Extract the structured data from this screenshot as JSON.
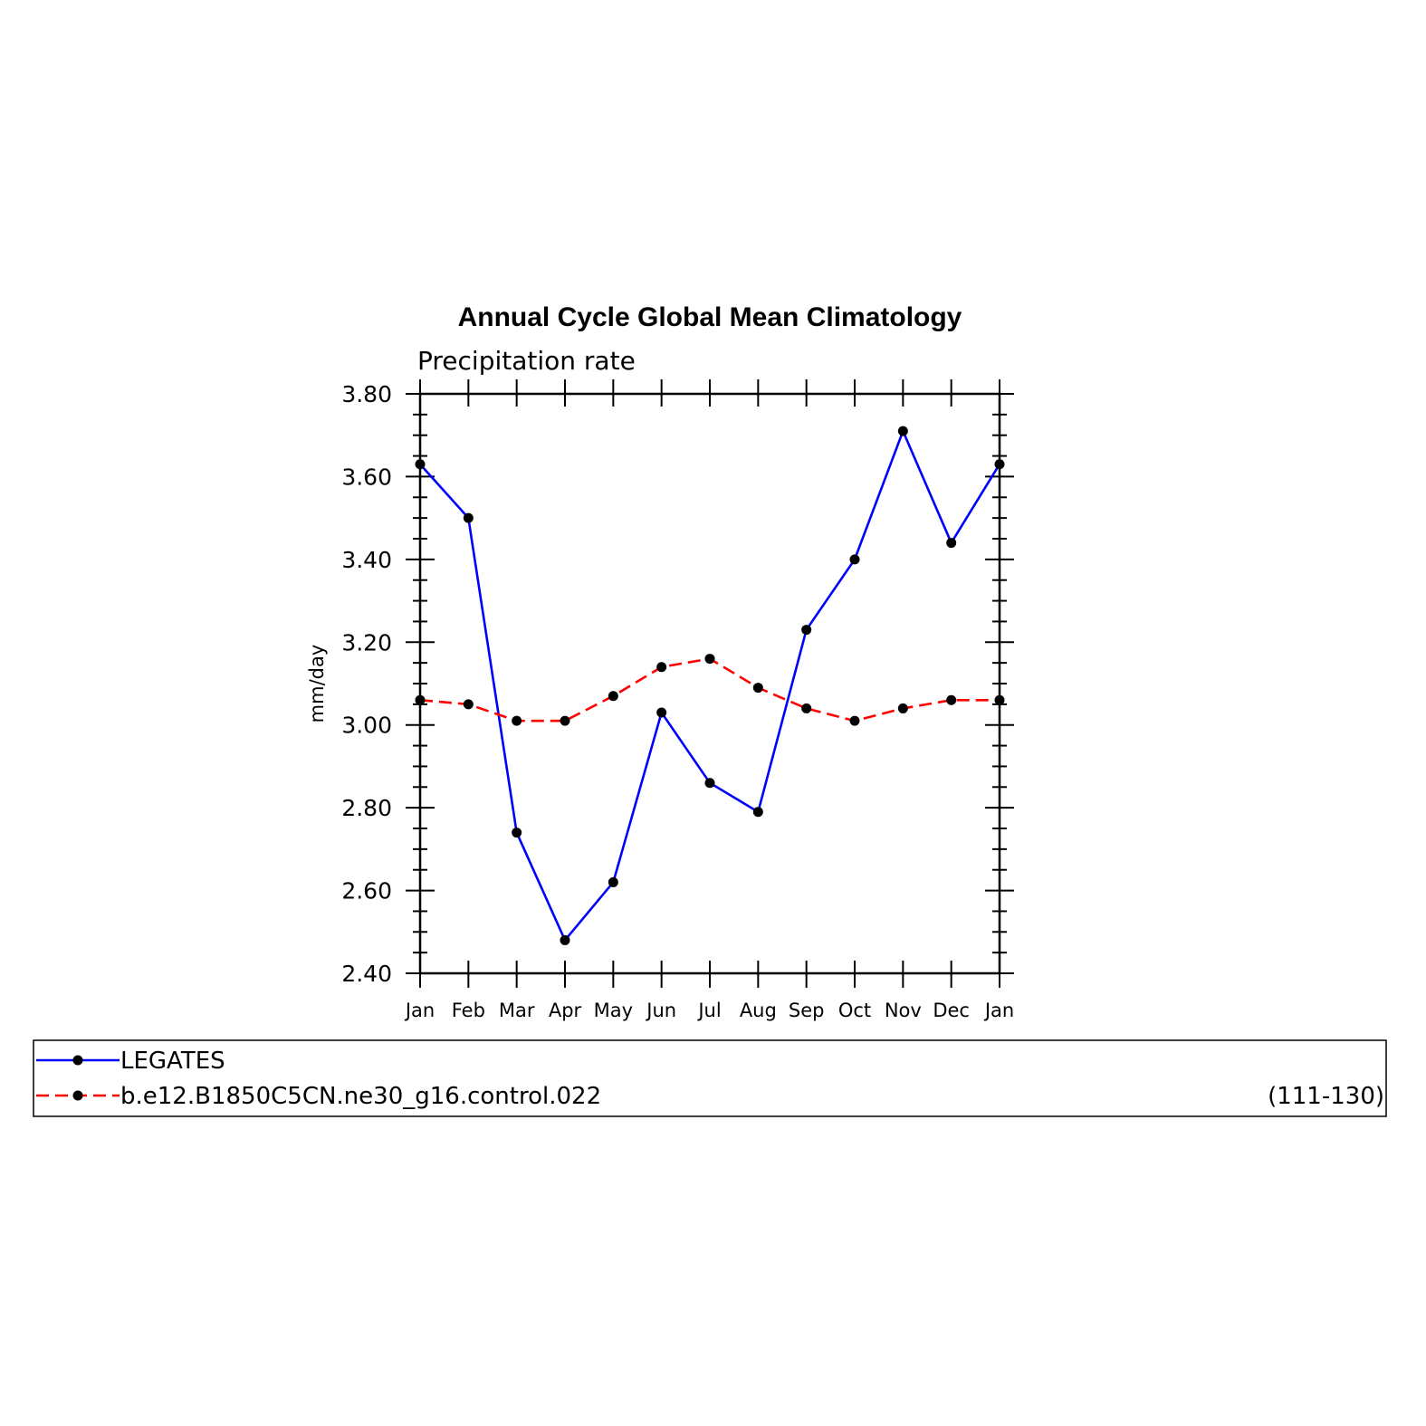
{
  "chart_data": {
    "type": "line",
    "title": "Annual Cycle Global Mean Climatology",
    "subtitle": "Precipitation rate",
    "ylabel": "mm/day",
    "xlabel": "",
    "categories": [
      "Jan",
      "Feb",
      "Mar",
      "Apr",
      "May",
      "Jun",
      "Jul",
      "Aug",
      "Sep",
      "Oct",
      "Nov",
      "Dec",
      "Jan"
    ],
    "ylim": [
      2.4,
      3.8
    ],
    "yticks": [
      "2.40",
      "2.60",
      "2.80",
      "3.00",
      "3.20",
      "3.40",
      "3.60",
      "3.80"
    ],
    "grid": false,
    "legend_position": "bottom",
    "series": [
      {
        "name": "LEGATES",
        "color": "#0000ff",
        "dash": "solid",
        "values": [
          3.63,
          3.5,
          2.74,
          2.48,
          2.62,
          3.03,
          2.86,
          2.79,
          3.23,
          3.4,
          3.71,
          3.44,
          3.63
        ]
      },
      {
        "name": "b.e12.B1850C5CN.ne30_g16.control.022",
        "color": "#ff0000",
        "dash": "dashed",
        "values": [
          3.06,
          3.05,
          3.01,
          3.01,
          3.07,
          3.14,
          3.16,
          3.09,
          3.04,
          3.01,
          3.04,
          3.06,
          3.06
        ]
      }
    ],
    "legend_note": "(111-130)"
  }
}
